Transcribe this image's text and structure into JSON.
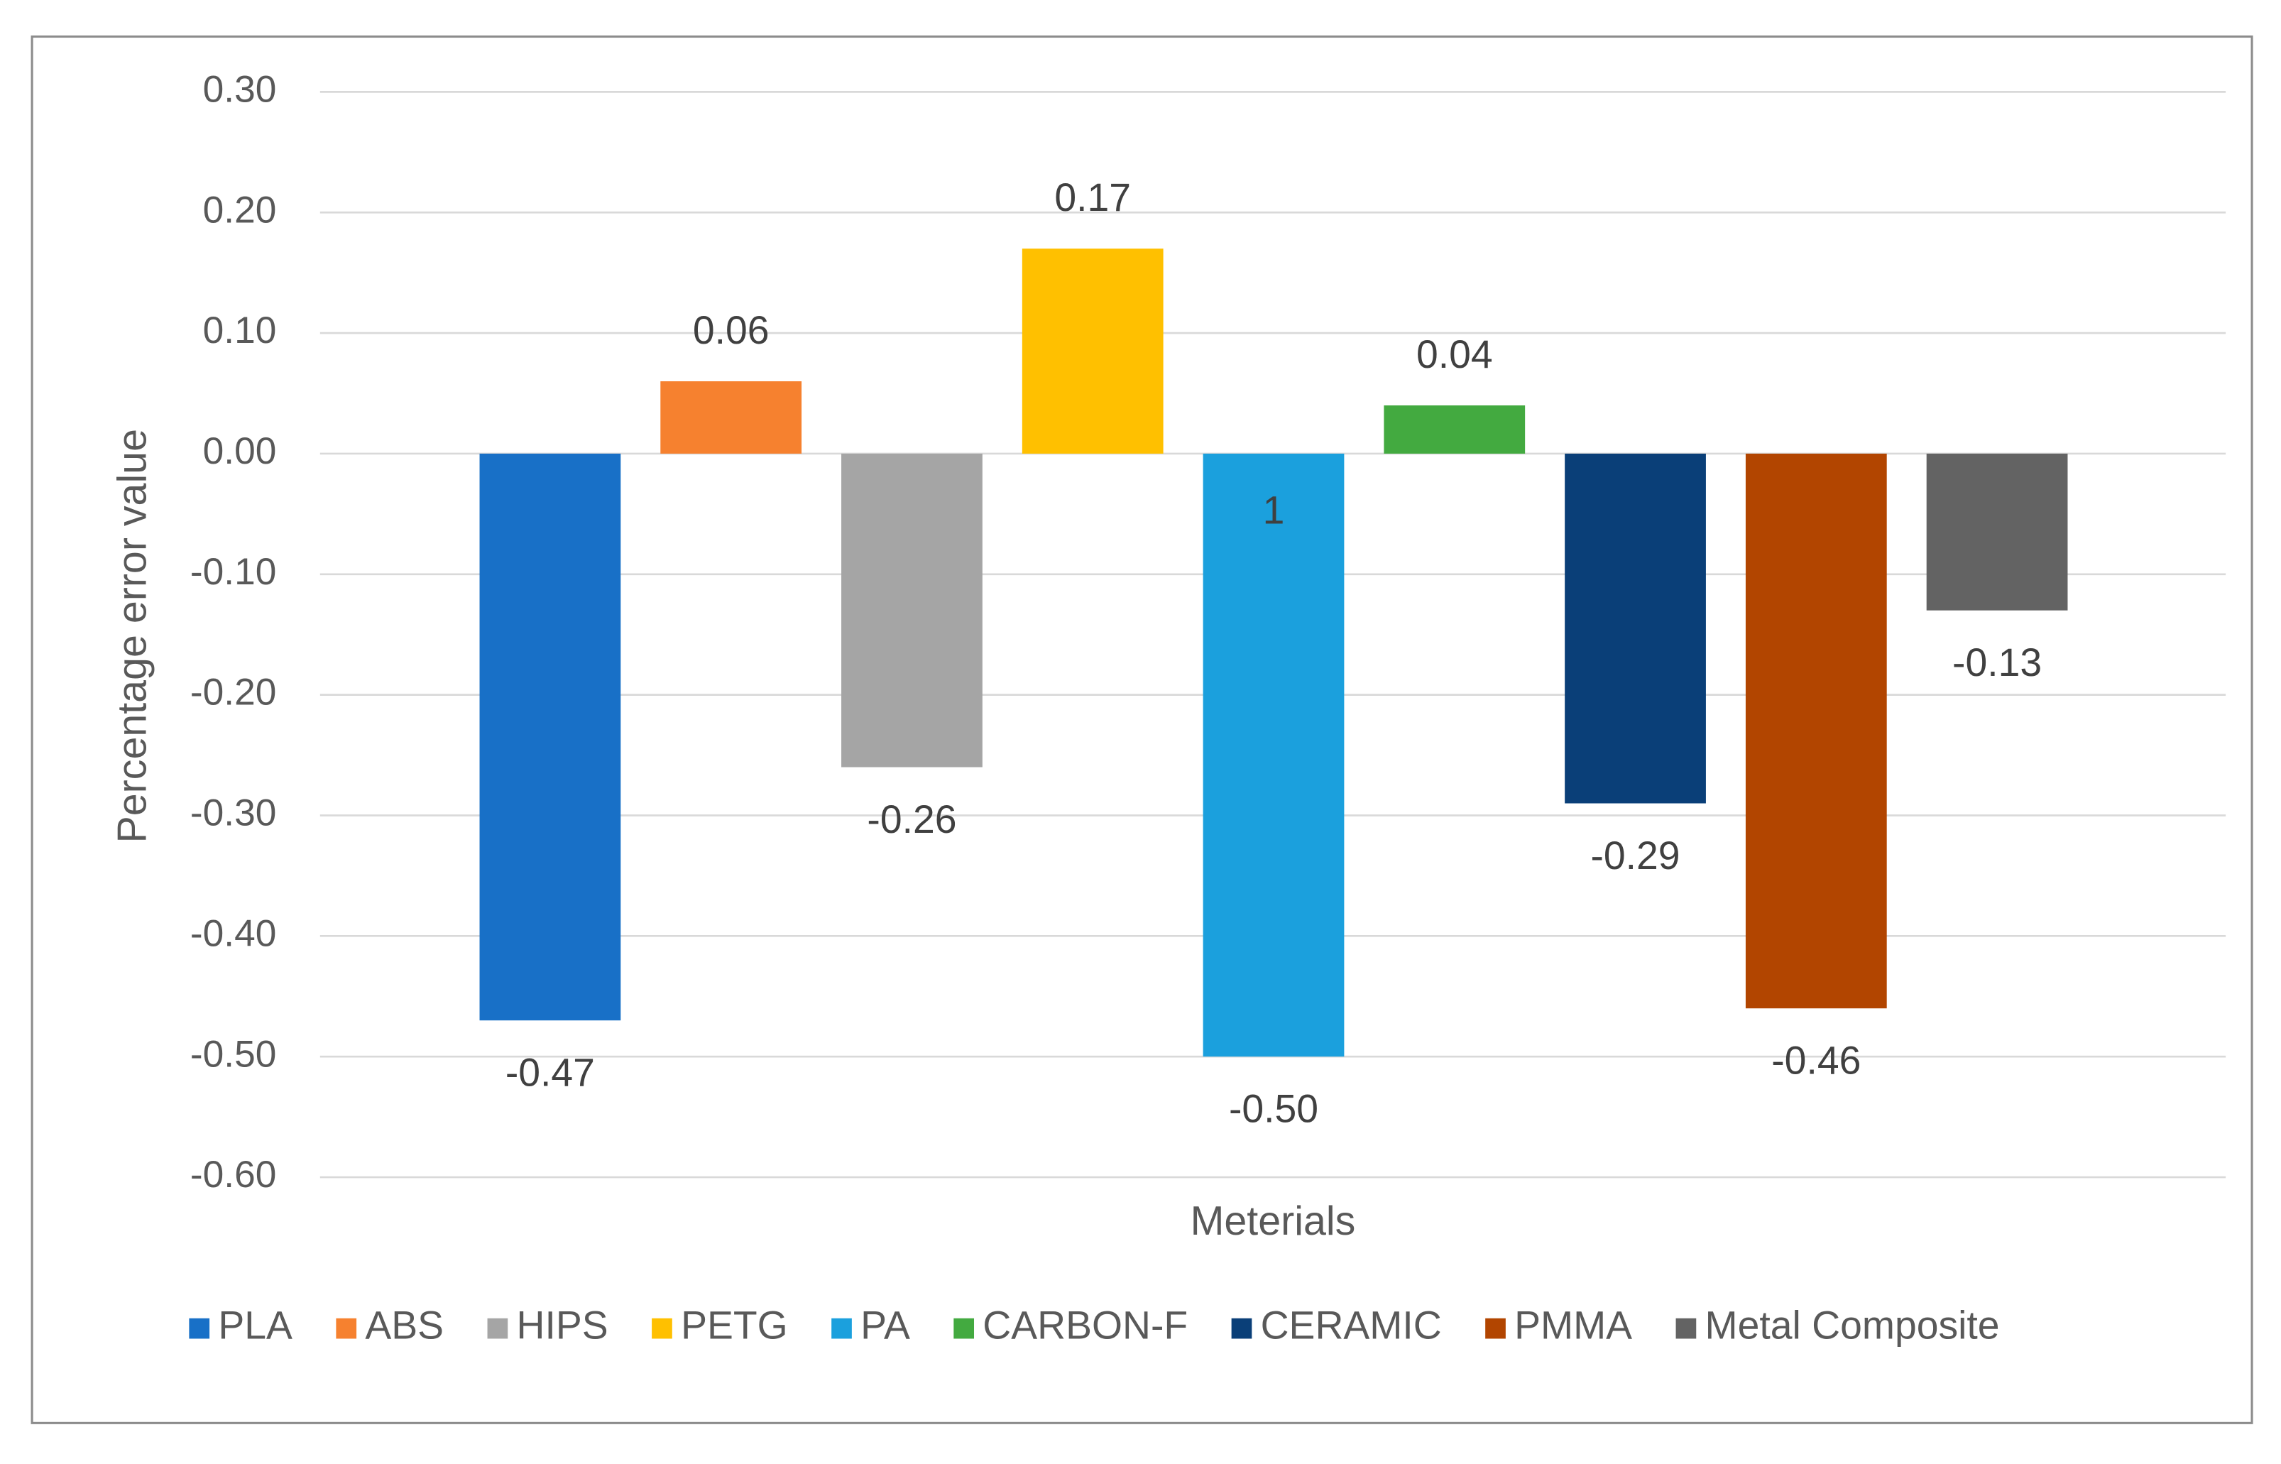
{
  "chart_data": {
    "type": "bar",
    "x_label": "Meterials",
    "y_label": "Percentage error value",
    "categories": [
      "PLA",
      "ABS",
      "HIPS",
      "PETG",
      "PA",
      "CARBON-F",
      "CERAMIC",
      "PMMA",
      "Metal Composite"
    ],
    "values": [
      -0.47,
      0.06,
      -0.26,
      0.17,
      -0.5,
      0.04,
      -0.29,
      -0.46,
      -0.13
    ],
    "value_labels": [
      "-0.47",
      "0.06",
      "-0.26",
      "0.17",
      "-0.50",
      "0.04",
      "-0.29",
      "-0.46",
      "-0.13"
    ],
    "colors": [
      "#1870c7",
      "#f6812f",
      "#a5a5a5",
      "#ffc000",
      "#1ba0dd",
      "#43aa40",
      "#0a3f78",
      "#b24500",
      "#636363"
    ],
    "annotations": [
      {
        "text": "1",
        "category": "PA"
      }
    ],
    "ylim": [
      -0.6,
      0.3
    ],
    "yticks": [
      {
        "value": 0.3,
        "label": "0.30"
      },
      {
        "value": 0.2,
        "label": "0.20"
      },
      {
        "value": 0.1,
        "label": "0.10"
      },
      {
        "value": 0,
        "label": "0.00"
      },
      {
        "value": -0.1,
        "label": "-0.10"
      },
      {
        "value": -0.2,
        "label": "-0.20"
      },
      {
        "value": -0.3,
        "label": "-0.30"
      },
      {
        "value": -0.4,
        "label": "-0.40"
      },
      {
        "value": -0.5,
        "label": "-0.50"
      },
      {
        "value": -0.6,
        "label": "-0.60"
      }
    ],
    "grid": true,
    "legend": "bottom"
  }
}
